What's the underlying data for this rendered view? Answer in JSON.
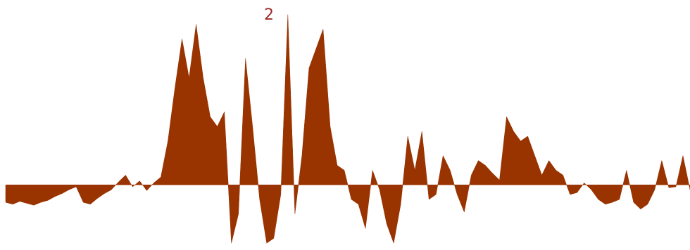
{
  "chart_data": {
    "type": "area",
    "title": "2",
    "color": "#993300",
    "title_color": "#9b2d2d",
    "ylim": [
      -67,
      190
    ],
    "values": [
      -18,
      -20,
      -17,
      -19,
      -21,
      -18,
      -16,
      -12,
      -9,
      -5,
      -2,
      -18,
      -20,
      -14,
      -9,
      -5,
      3,
      10,
      -2,
      4,
      -6,
      2,
      8,
      45,
      100,
      150,
      110,
      165,
      110,
      70,
      60,
      75,
      -60,
      -30,
      130,
      60,
      -15,
      -60,
      -55,
      -10,
      175,
      -30,
      30,
      120,
      140,
      160,
      60,
      20,
      15,
      -15,
      -20,
      -45,
      15,
      -5,
      -40,
      -60,
      -20,
      50,
      15,
      55,
      -15,
      -10,
      30,
      15,
      -10,
      -28,
      10,
      25,
      20,
      12,
      5,
      70,
      55,
      45,
      50,
      30,
      10,
      25,
      15,
      10,
      -10,
      -8,
      2,
      -5,
      -15,
      -20,
      -18,
      -15,
      15,
      -18,
      -25,
      -20,
      -5,
      25,
      -3,
      -2,
      30,
      -5
    ]
  }
}
